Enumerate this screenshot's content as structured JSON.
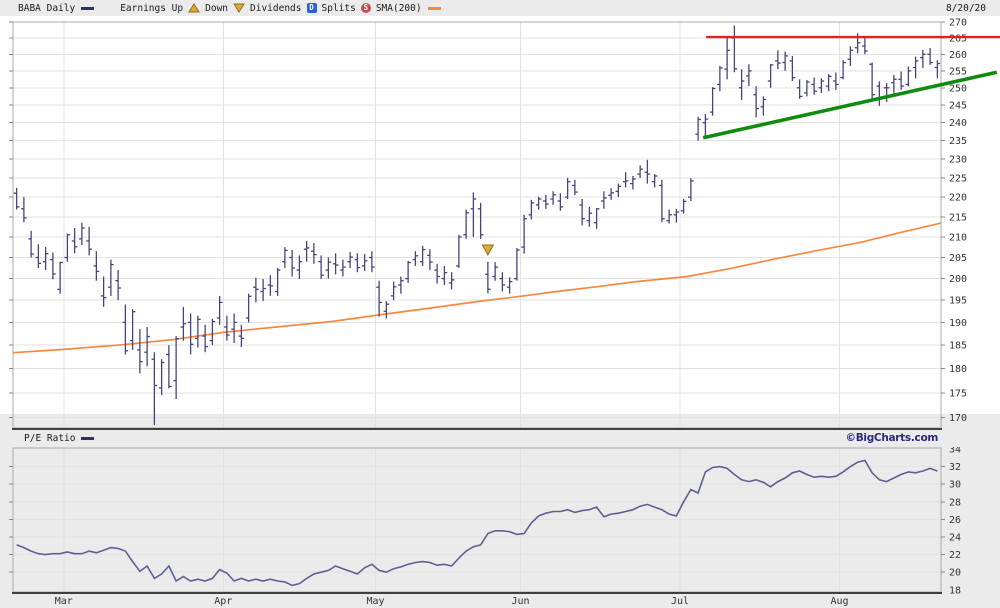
{
  "header": {
    "symbol_label": "BABA Daily",
    "legend": {
      "earnings_up_label": "Earnings Up",
      "down_label": "Down",
      "dividends_label": "Dividends",
      "dividends_badge": "D",
      "splits_label": "Splits",
      "splits_badge": "S",
      "sma_label": "SMA(200)"
    },
    "date": "8/20/20"
  },
  "midband": {
    "pe_label": "P/E Ratio",
    "copyright": "©BigCharts.com"
  },
  "colors": {
    "background": "#ebebeb",
    "plot_bg": "#ffffff",
    "grid": "#e2e2e2",
    "border_light": "#aaaaaa",
    "border_dark": "#3f3f3f",
    "bar_navy": "#45457c",
    "pe_line": "#5f5f91",
    "sma_orange": "#f6883f",
    "trend_red": "#e42217",
    "trend_green": "#0f8c0f",
    "marker_gold": "#dcab33",
    "marker_gold_border": "#8f6f1c",
    "axis_text": "#333333"
  },
  "chart_data": [
    {
      "type": "bar",
      "subtype": "ohlc-bars",
      "title": "BABA Daily price",
      "scale": "log",
      "ylim": [
        167,
        270
      ],
      "y_ticks": [
        270,
        265,
        260,
        255,
        250,
        245,
        240,
        235,
        230,
        225,
        220,
        215,
        210,
        205,
        200,
        195,
        190,
        185,
        180,
        175,
        170
      ],
      "x_months": [
        "Mar",
        "Apr",
        "May",
        "Jun",
        "Jul",
        "Aug"
      ],
      "month_start_indices": [
        7,
        29,
        50,
        70,
        92,
        114
      ],
      "bars_ohlc": [
        [
          221.0,
          222.4,
          216.8,
          217.5
        ],
        [
          217.0,
          220.0,
          213.6,
          214.7
        ],
        [
          209.5,
          211.5,
          205.0,
          205.8
        ],
        [
          205.0,
          208.2,
          202.5,
          203.6
        ],
        [
          204.0,
          207.5,
          202.0,
          205.9
        ],
        [
          204.5,
          206.2,
          199.8,
          201.1
        ],
        [
          197.5,
          204.0,
          196.5,
          203.8
        ],
        [
          205.0,
          210.8,
          204.0,
          210.5
        ],
        [
          209.0,
          212.2,
          206.0,
          207.6
        ],
        [
          209.5,
          213.5,
          208.0,
          212.2
        ],
        [
          209.0,
          212.5,
          205.5,
          207.0
        ],
        [
          203.0,
          206.5,
          199.5,
          201.7
        ],
        [
          196.0,
          200.5,
          193.5,
          195.6
        ],
        [
          198.0,
          204.5,
          196.0,
          203.3
        ],
        [
          199.5,
          202.0,
          195.0,
          197.8
        ],
        [
          190.0,
          194.0,
          183.0,
          183.8
        ],
        [
          186.0,
          193.0,
          184.0,
          192.4
        ],
        [
          184.0,
          188.5,
          179.0,
          181.5
        ],
        [
          183.5,
          189.0,
          180.5,
          186.9
        ],
        [
          182.0,
          183.5,
          168.5,
          176.5
        ],
        [
          176.0,
          182.0,
          174.5,
          181.3
        ],
        [
          183.0,
          185.0,
          175.9,
          176.3
        ],
        [
          177.5,
          187.0,
          173.7,
          186.4
        ],
        [
          189.0,
          193.5,
          186.0,
          189.7
        ],
        [
          190.0,
          192.0,
          183.0,
          185.2
        ],
        [
          186.5,
          191.5,
          184.5,
          190.7
        ],
        [
          187.0,
          189.5,
          183.5,
          184.7
        ],
        [
          186.0,
          190.8,
          185.0,
          190.2
        ],
        [
          191.0,
          196.0,
          189.5,
          194.5
        ],
        [
          189.0,
          191.5,
          186.0,
          187.2
        ],
        [
          188.5,
          192.0,
          185.5,
          190.0
        ],
        [
          187.0,
          189.5,
          184.6,
          186.5
        ],
        [
          191.0,
          196.5,
          190.0,
          195.9
        ],
        [
          198.0,
          200.2,
          194.5,
          197.5
        ],
        [
          197.0,
          199.9,
          194.8,
          197.7
        ],
        [
          198.5,
          200.8,
          196.0,
          198.3
        ],
        [
          197.0,
          202.5,
          196.0,
          202.0
        ],
        [
          204.0,
          207.5,
          202.5,
          206.7
        ],
        [
          205.0,
          206.8,
          200.5,
          202.5
        ],
        [
          202.0,
          205.5,
          199.9,
          204.0
        ],
        [
          207.0,
          209.0,
          204.0,
          207.3
        ],
        [
          206.5,
          208.5,
          203.5,
          205.7
        ],
        [
          204.0,
          205.5,
          199.9,
          200.8
        ],
        [
          202.0,
          205.0,
          200.0,
          203.9
        ],
        [
          203.5,
          206.0,
          201.0,
          203.2
        ],
        [
          202.0,
          204.5,
          200.5,
          202.7
        ],
        [
          204.0,
          206.3,
          202.5,
          205.1
        ],
        [
          204.5,
          206.0,
          201.5,
          202.6
        ],
        [
          203.0,
          205.8,
          201.8,
          204.2
        ],
        [
          205.0,
          206.5,
          201.5,
          202.7
        ],
        [
          198.0,
          199.5,
          191.3,
          194.5
        ],
        [
          192.5,
          194.8,
          190.9,
          194.1
        ],
        [
          196.0,
          199.3,
          195.0,
          198.1
        ],
        [
          198.5,
          200.5,
          196.5,
          199.5
        ],
        [
          200.0,
          204.2,
          199.0,
          203.8
        ],
        [
          204.5,
          206.5,
          203.0,
          205.4
        ],
        [
          204.0,
          207.8,
          203.0,
          206.9
        ],
        [
          205.5,
          207.0,
          202.0,
          203.9
        ],
        [
          202.0,
          203.5,
          198.8,
          200.5
        ],
        [
          200.0,
          203.0,
          198.5,
          201.4
        ],
        [
          199.0,
          201.5,
          197.5,
          199.7
        ],
        [
          203.0,
          210.5,
          202.5,
          210.0
        ],
        [
          210.5,
          216.8,
          209.5,
          216.0
        ],
        [
          217.0,
          221.2,
          210.0,
          219.5
        ],
        [
          217.0,
          218.5,
          209.5,
          210.5
        ],
        [
          201.0,
          204.0,
          196.6,
          197.5
        ],
        [
          200.5,
          203.9,
          199.5,
          202.7
        ],
        [
          200.0,
          201.5,
          197.0,
          198.5
        ],
        [
          198.0,
          200.3,
          196.5,
          199.3
        ],
        [
          200.0,
          207.3,
          199.5,
          206.8
        ],
        [
          207.5,
          215.5,
          205.9,
          214.5
        ],
        [
          215.5,
          219.3,
          214.3,
          218.5
        ],
        [
          218.0,
          220.1,
          216.8,
          219.5
        ],
        [
          219.0,
          220.6,
          217.0,
          218.2
        ],
        [
          219.5,
          221.5,
          218.0,
          220.6
        ],
        [
          219.0,
          221.0,
          216.5,
          217.5
        ],
        [
          220.0,
          225.0,
          219.5,
          224.0
        ],
        [
          223.0,
          224.5,
          220.5,
          221.3
        ],
        [
          218.0,
          219.5,
          212.8,
          214.5
        ],
        [
          214.0,
          217.5,
          212.5,
          215.9
        ],
        [
          213.5,
          217.2,
          212.0,
          217.0
        ],
        [
          219.0,
          221.5,
          217.0,
          219.8
        ],
        [
          220.5,
          222.3,
          219.3,
          221.1
        ],
        [
          221.5,
          223.5,
          220.0,
          222.8
        ],
        [
          224.0,
          226.5,
          222.5,
          224.2
        ],
        [
          223.5,
          225.5,
          222.0,
          224.7
        ],
        [
          226.0,
          228.3,
          225.0,
          227.3
        ],
        [
          226.5,
          229.8,
          223.5,
          226.0
        ],
        [
          224.0,
          226.0,
          222.5,
          225.5
        ],
        [
          223.0,
          224.5,
          213.6,
          214.5
        ],
        [
          214.0,
          216.8,
          213.3,
          215.5
        ],
        [
          215.5,
          217.0,
          213.5,
          216.2
        ],
        [
          216.5,
          219.5,
          215.8,
          218.9
        ],
        [
          220.0,
          224.9,
          219.0,
          224.2
        ],
        [
          236.8,
          241.7,
          235.0,
          240.9
        ],
        [
          240.0,
          242.5,
          236.3,
          241.0
        ],
        [
          243.0,
          250.2,
          242.0,
          249.8
        ],
        [
          251.0,
          256.5,
          249.0,
          255.9
        ],
        [
          255.5,
          265.5,
          252.5,
          261.2
        ],
        [
          265.0,
          268.9,
          254.6,
          255.6
        ],
        [
          250.0,
          255.5,
          246.5,
          252.0
        ],
        [
          253.5,
          257.0,
          250.5,
          255.0
        ],
        [
          248.0,
          250.5,
          241.5,
          244.0
        ],
        [
          244.5,
          247.5,
          242.0,
          246.6
        ],
        [
          252.0,
          257.0,
          250.0,
          256.8
        ],
        [
          258.0,
          261.2,
          255.5,
          257.3
        ],
        [
          257.5,
          260.8,
          255.0,
          259.5
        ],
        [
          258.0,
          259.5,
          252.0,
          253.0
        ],
        [
          250.0,
          252.5,
          246.8,
          247.5
        ],
        [
          248.5,
          252.3,
          247.5,
          251.7
        ],
        [
          251.0,
          253.0,
          248.0,
          249.0
        ],
        [
          250.0,
          252.8,
          248.5,
          252.0
        ],
        [
          250.5,
          254.0,
          249.0,
          253.4
        ],
        [
          252.0,
          254.5,
          249.4,
          251.0
        ],
        [
          253.0,
          258.2,
          252.5,
          257.5
        ],
        [
          258.5,
          262.4,
          256.5,
          261.2
        ],
        [
          262.0,
          266.5,
          260.3,
          263.5
        ],
        [
          262.5,
          265.2,
          260.0,
          261.0
        ],
        [
          257.0,
          257.5,
          246.8,
          248.0
        ],
        [
          250.5,
          251.9,
          244.8,
          247.0
        ],
        [
          250.0,
          251.4,
          245.9,
          250.0
        ],
        [
          251.5,
          253.8,
          247.8,
          252.5
        ],
        [
          252.5,
          254.8,
          249.4,
          250.5
        ],
        [
          251.0,
          256.3,
          250.4,
          255.0
        ],
        [
          256.0,
          259.3,
          252.8,
          258.0
        ],
        [
          259.0,
          261.4,
          255.8,
          260.0
        ],
        [
          260.0,
          261.9,
          256.8,
          257.5
        ],
        [
          256.0,
          258.2,
          252.8,
          257.2
        ]
      ],
      "sma200_anchors": [
        [
          0,
          183.4
        ],
        [
          7,
          184.1
        ],
        [
          15,
          185.1
        ],
        [
          22,
          186.2
        ],
        [
          29,
          187.8
        ],
        [
          37,
          189.1
        ],
        [
          44,
          190.2
        ],
        [
          51,
          191.8
        ],
        [
          57,
          193.1
        ],
        [
          64,
          194.7
        ],
        [
          70,
          195.9
        ],
        [
          75,
          197.0
        ],
        [
          81,
          198.2
        ],
        [
          86,
          199.3
        ],
        [
          93,
          200.5
        ],
        [
          99,
          202.4
        ],
        [
          105,
          204.6
        ],
        [
          111,
          206.7
        ],
        [
          117,
          208.7
        ],
        [
          122,
          210.9
        ],
        [
          128,
          213.4
        ]
      ],
      "trendlines": [
        {
          "name": "resistance",
          "color_key": "trend_red",
          "index_from": 95.6,
          "price_from": 265.3,
          "index_to": 136.2,
          "price_to": 265.3,
          "width": 2.4
        },
        {
          "name": "support",
          "color_key": "trend_green",
          "index_from": 95.2,
          "price_from": 235.8,
          "index_to": 135.7,
          "price_to": 254.6,
          "width": 3.6
        }
      ],
      "markers": [
        {
          "name": "earnings-down",
          "shape": "triangle-down",
          "index": 65,
          "price": 206.8
        }
      ]
    },
    {
      "type": "line",
      "title": "P/E Ratio",
      "scale": "linear",
      "ylim": [
        17.7,
        34.1
      ],
      "y_ticks": [
        34,
        32,
        30,
        28,
        26,
        24,
        22,
        20,
        18
      ],
      "values": [
        23.1,
        22.8,
        22.4,
        22.1,
        22.0,
        22.1,
        22.1,
        22.3,
        22.1,
        22.1,
        22.4,
        22.2,
        22.5,
        22.8,
        22.7,
        22.4,
        21.2,
        20.1,
        20.7,
        19.3,
        19.8,
        20.7,
        19.0,
        19.5,
        19.0,
        19.2,
        19.0,
        19.3,
        20.3,
        19.9,
        19.0,
        19.3,
        19.0,
        19.2,
        19.0,
        19.2,
        19.0,
        18.9,
        18.5,
        18.7,
        19.3,
        19.8,
        20.0,
        20.2,
        20.7,
        20.4,
        20.1,
        19.8,
        20.5,
        20.9,
        20.2,
        20.0,
        20.4,
        20.6,
        20.9,
        21.1,
        21.2,
        21.1,
        20.8,
        20.9,
        20.7,
        21.6,
        22.4,
        22.9,
        23.1,
        24.4,
        24.7,
        24.7,
        24.6,
        24.3,
        24.4,
        25.6,
        26.4,
        26.7,
        26.9,
        26.9,
        27.1,
        26.8,
        27.0,
        27.1,
        27.4,
        26.3,
        26.6,
        26.7,
        26.9,
        27.1,
        27.5,
        27.7,
        27.4,
        27.1,
        26.6,
        26.4,
        28.0,
        29.4,
        29.0,
        31.4,
        31.9,
        32.0,
        31.8,
        31.1,
        30.5,
        30.3,
        30.5,
        30.2,
        29.7,
        30.3,
        30.7,
        31.3,
        31.5,
        31.1,
        30.8,
        30.9,
        30.8,
        30.9,
        31.4,
        32.0,
        32.5,
        32.7,
        31.3,
        30.5,
        30.3,
        30.7,
        31.1,
        31.4,
        31.3,
        31.5,
        31.8,
        31.5
      ]
    }
  ]
}
